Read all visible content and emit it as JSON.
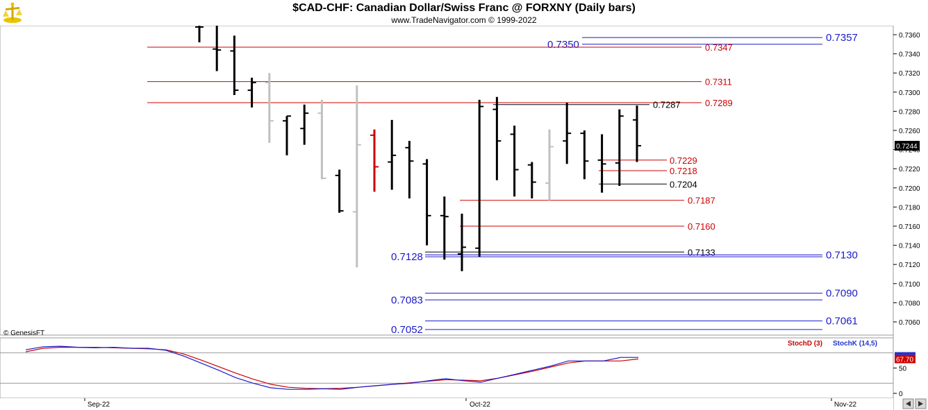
{
  "header": {
    "title": "$CAD-CHF:  Canadian Dollar/Swiss Franc @ FORXNY  (Daily bars)",
    "subtitle": "www.TradeNavigator.com © 1999-2022"
  },
  "watermark": "© GenesisFT",
  "colors": {
    "black": "#000000",
    "red": "#cc0000",
    "blue": "#1a1acc",
    "grey": "#c0c0c0",
    "stoch_d": "#cc0000",
    "stoch_k": "#2233cc"
  },
  "chart_data": [
    {
      "type": "ohlc",
      "title": "$CAD-CHF:  Canadian Dollar/Swiss Franc @ FORXNY  (Daily bars)",
      "y_axis": {
        "ylim": [
          0.7052,
          0.7367
        ],
        "ticks": [
          "0.7360",
          "0.7340",
          "0.7320",
          "0.7300",
          "0.7280",
          "0.7260",
          "0.7240",
          "0.7220",
          "0.7200",
          "0.7180",
          "0.7160",
          "0.7140",
          "0.7120",
          "0.7100",
          "0.7080",
          "0.7060"
        ]
      },
      "x_axis": {
        "labels": [
          "Sep-22",
          "Oct-22",
          "Nov-22"
        ]
      },
      "last_price": "0.7244",
      "bars": [
        {
          "o": 0.7368,
          "h": 0.7372,
          "l": 0.7352,
          "c": 0.7368,
          "color": "black"
        },
        {
          "o": 0.7345,
          "h": 0.737,
          "l": 0.7322,
          "c": 0.7344,
          "color": "black"
        },
        {
          "o": 0.7343,
          "h": 0.7359,
          "l": 0.7297,
          "c": 0.7302,
          "color": "black"
        },
        {
          "o": 0.7302,
          "h": 0.7315,
          "l": 0.7284,
          "c": 0.731,
          "color": "black"
        },
        {
          "o": 0.731,
          "h": 0.732,
          "l": 0.7247,
          "c": 0.727,
          "color": "grey"
        },
        {
          "o": 0.727,
          "h": 0.7275,
          "l": 0.7234,
          "c": 0.7275,
          "color": "black"
        },
        {
          "o": 0.7262,
          "h": 0.7287,
          "l": 0.7245,
          "c": 0.7278,
          "color": "black"
        },
        {
          "o": 0.7278,
          "h": 0.7292,
          "l": 0.7209,
          "c": 0.721,
          "color": "grey"
        },
        {
          "o": 0.7213,
          "h": 0.7219,
          "l": 0.7174,
          "c": 0.7176,
          "color": "black"
        },
        {
          "o": 0.7175,
          "h": 0.7307,
          "l": 0.7117,
          "c": 0.7245,
          "color": "grey"
        },
        {
          "o": 0.7255,
          "h": 0.7261,
          "l": 0.7196,
          "c": 0.7222,
          "color": "red"
        },
        {
          "o": 0.7227,
          "h": 0.7271,
          "l": 0.7198,
          "c": 0.7234,
          "color": "black"
        },
        {
          "o": 0.7242,
          "h": 0.7249,
          "l": 0.7189,
          "c": 0.7228,
          "color": "black"
        },
        {
          "o": 0.7225,
          "h": 0.723,
          "l": 0.714,
          "c": 0.7171,
          "color": "black"
        },
        {
          "o": 0.7171,
          "h": 0.7191,
          "l": 0.7125,
          "c": 0.717,
          "color": "black"
        },
        {
          "o": 0.7131,
          "h": 0.7173,
          "l": 0.7113,
          "c": 0.7138,
          "color": "black"
        },
        {
          "o": 0.7137,
          "h": 0.7292,
          "l": 0.7128,
          "c": 0.7285,
          "color": "black"
        },
        {
          "o": 0.7282,
          "h": 0.7295,
          "l": 0.7208,
          "c": 0.7249,
          "color": "black"
        },
        {
          "o": 0.7256,
          "h": 0.7265,
          "l": 0.7191,
          "c": 0.7219,
          "color": "black"
        },
        {
          "o": 0.7224,
          "h": 0.7227,
          "l": 0.7189,
          "c": 0.7206,
          "color": "black"
        },
        {
          "o": 0.7205,
          "h": 0.7261,
          "l": 0.7187,
          "c": 0.7243,
          "color": "grey"
        },
        {
          "o": 0.7249,
          "h": 0.7289,
          "l": 0.7225,
          "c": 0.7257,
          "color": "black"
        },
        {
          "o": 0.7257,
          "h": 0.726,
          "l": 0.7209,
          "c": 0.7228,
          "color": "black"
        },
        {
          "o": 0.7229,
          "h": 0.7256,
          "l": 0.7195,
          "c": 0.7225,
          "color": "black"
        },
        {
          "o": 0.7226,
          "h": 0.7282,
          "l": 0.7202,
          "c": 0.7275,
          "color": "black"
        },
        {
          "o": 0.7271,
          "h": 0.7286,
          "l": 0.7227,
          "c": 0.7244,
          "color": "black"
        }
      ],
      "levels": [
        {
          "value": "0.7357",
          "color": "blue",
          "label_side": "right"
        },
        {
          "value": "0.7350",
          "color": "blue",
          "label_side": "left"
        },
        {
          "value": "0.7347",
          "color": "red",
          "label_side": "right"
        },
        {
          "value": "0.7311",
          "color": "red",
          "label_side": "right"
        },
        {
          "value": "0.7289",
          "color": "red",
          "label_side": "right"
        },
        {
          "value": "0.7287",
          "color": "black",
          "label_side": "right"
        },
        {
          "value": "0.7229",
          "color": "red",
          "label_side": "right"
        },
        {
          "value": "0.7218",
          "color": "red",
          "label_side": "right"
        },
        {
          "value": "0.7204",
          "color": "black",
          "label_side": "right"
        },
        {
          "value": "0.7187",
          "color": "red",
          "label_side": "right"
        },
        {
          "value": "0.7160",
          "color": "red",
          "label_side": "right"
        },
        {
          "value": "0.7133",
          "color": "black",
          "label_side": "right"
        },
        {
          "value": "0.7130",
          "color": "blue",
          "label_side": "right"
        },
        {
          "value": "0.7128",
          "color": "blue",
          "label_side": "left"
        },
        {
          "value": "0.7090",
          "color": "blue",
          "label_side": "right"
        },
        {
          "value": "0.7083",
          "color": "blue",
          "label_side": "left"
        },
        {
          "value": "0.7061",
          "color": "blue",
          "label_side": "right"
        },
        {
          "value": "0.7052",
          "color": "blue",
          "label_side": "left"
        }
      ]
    },
    {
      "type": "line",
      "title": "StochD (3)  StochK (14,5)",
      "ylim": [
        0,
        100
      ],
      "y_ticks": [
        "50",
        "0"
      ],
      "last_value": "67.70",
      "series": [
        {
          "name": "StochD (3)",
          "color": "red",
          "values": [
            82,
            89,
            91,
            91,
            91,
            90,
            89,
            88,
            86,
            78,
            66,
            53,
            40,
            28,
            18,
            12,
            10,
            9,
            10,
            12,
            15,
            18,
            21,
            24,
            27,
            26,
            25,
            30,
            37,
            44,
            52,
            60,
            64,
            64,
            64,
            68
          ]
        },
        {
          "name": "StochK (14,5)",
          "color": "blue",
          "values": [
            86,
            92,
            93,
            91,
            90,
            91,
            89,
            89,
            85,
            74,
            60,
            46,
            31,
            20,
            11,
            8,
            8,
            9,
            8,
            12,
            15,
            18,
            20,
            25,
            29,
            25,
            22,
            30,
            38,
            46,
            54,
            64,
            64,
            64,
            71,
            71
          ]
        }
      ]
    }
  ]
}
